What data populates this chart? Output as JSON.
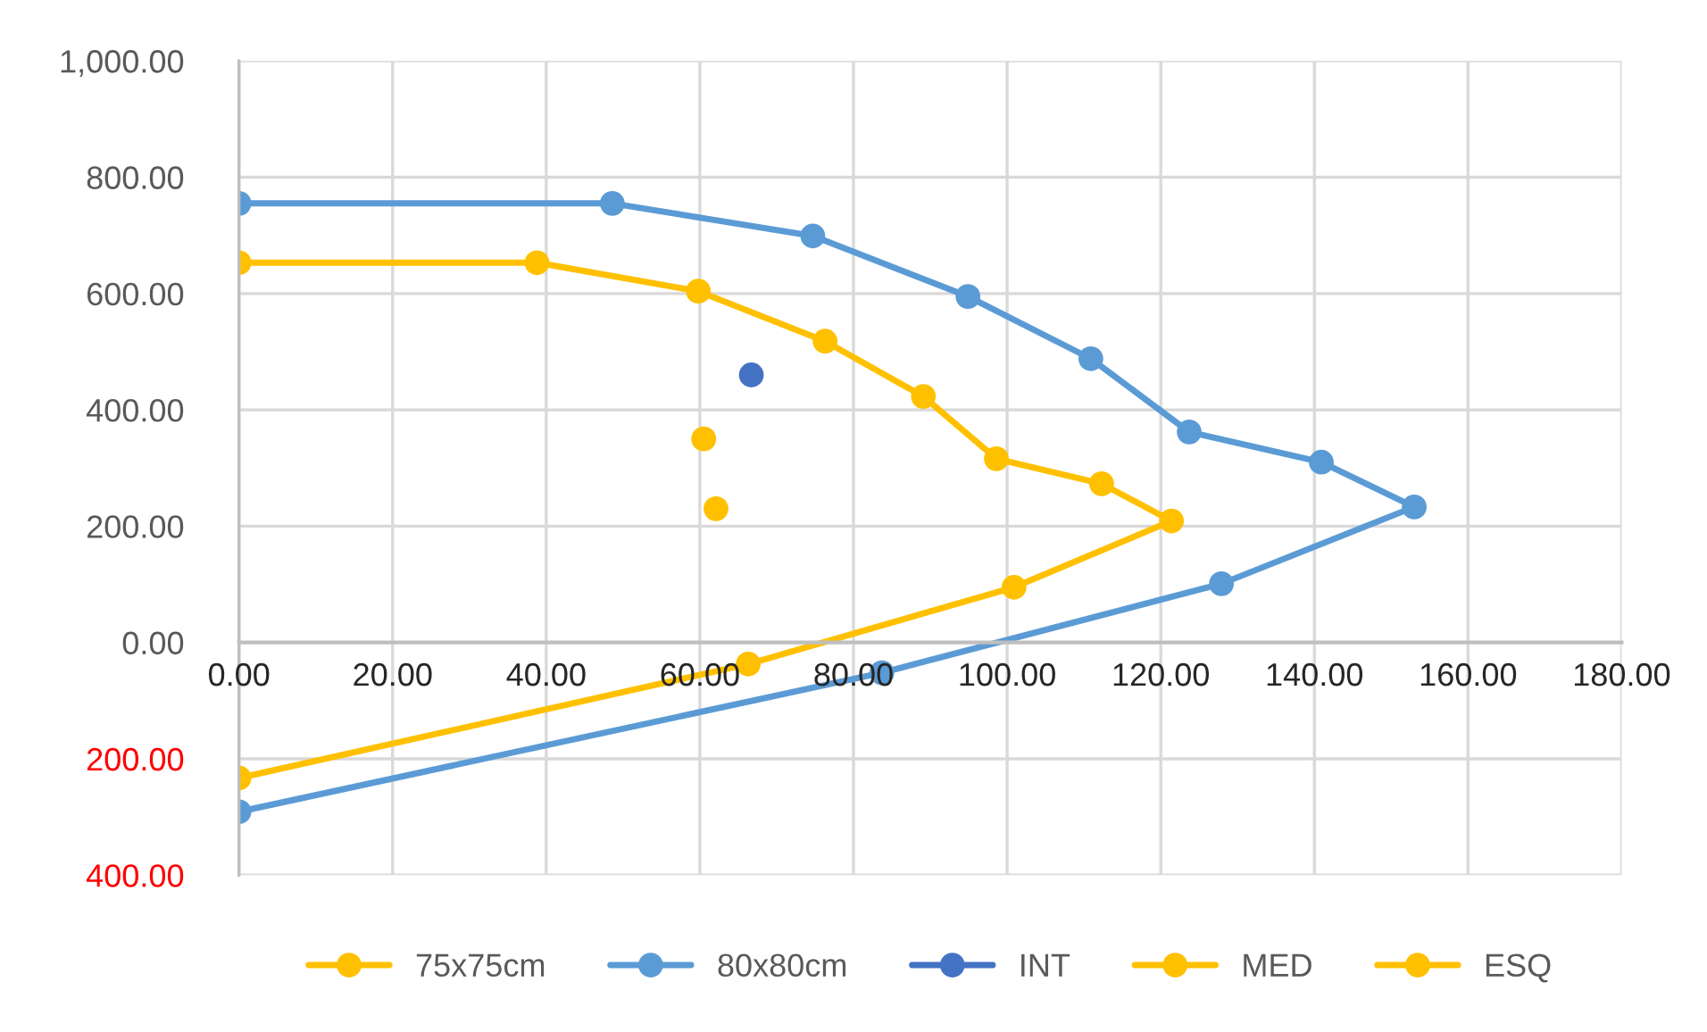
{
  "chart_data": {
    "type": "line",
    "marker": "circle",
    "line_style": "solid",
    "grid": true,
    "legend": "bottom",
    "xlim": [
      0,
      180
    ],
    "ylim": [
      -400,
      1000
    ],
    "xticks": [
      {
        "value": 0,
        "label": "0.00"
      },
      {
        "value": 20,
        "label": "20.00"
      },
      {
        "value": 40,
        "label": "40.00"
      },
      {
        "value": 60,
        "label": "60.00"
      },
      {
        "value": 80,
        "label": "80.00"
      },
      {
        "value": 100,
        "label": "100.00"
      },
      {
        "value": 120,
        "label": "120.00"
      },
      {
        "value": 140,
        "label": "140.00"
      },
      {
        "value": 160,
        "label": "160.00"
      },
      {
        "value": 180,
        "label": "180.00"
      }
    ],
    "yticks": [
      {
        "value": -400,
        "label": "400.00"
      },
      {
        "value": -200,
        "label": "200.00"
      },
      {
        "value": 0,
        "label": "0.00"
      },
      {
        "value": 200,
        "label": "200.00"
      },
      {
        "value": 400,
        "label": "400.00"
      },
      {
        "value": 600,
        "label": "600.00"
      },
      {
        "value": 800,
        "label": "800.00"
      },
      {
        "value": 1000,
        "label": "1,000.00"
      }
    ],
    "series": [
      {
        "name": "75x75cm",
        "color": "#ffc000",
        "x": [
          0,
          38.8,
          59.8,
          76.3,
          89.1,
          98.6,
          112.3,
          121.4,
          100.9,
          66.3,
          0
        ],
        "values": [
          653,
          653,
          604,
          518,
          423,
          316,
          273,
          209,
          95,
          -37,
          -233
        ]
      },
      {
        "name": "80x80cm",
        "color": "#5b9bd5",
        "x": [
          0,
          48.6,
          74.7,
          94.9,
          110.9,
          123.7,
          140.9,
          153,
          127.9,
          83.7,
          0
        ],
        "values": [
          755,
          755,
          699,
          595,
          488,
          362,
          310,
          233,
          101,
          -52,
          -291
        ]
      },
      {
        "name": "INT",
        "color": "#4472c4",
        "x": [
          66.7
        ],
        "values": [
          460
        ]
      },
      {
        "name": "MED",
        "color": "#ffc000",
        "x": [
          60.5
        ],
        "values": [
          350
        ]
      },
      {
        "name": "ESQ",
        "color": "#ffc000",
        "x": [
          62.1
        ],
        "values": [
          230
        ]
      }
    ]
  }
}
